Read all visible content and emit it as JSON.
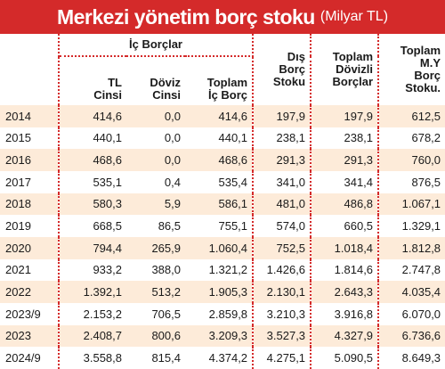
{
  "title": "Merkezi yönetim borç stoku",
  "unit": "(Milyar TL)",
  "chart_data": {
    "type": "table",
    "group_header": "İç Borçlar",
    "columns": [
      "",
      "TL Cinsi",
      "Döviz Cinsi",
      "Toplam İç Borç",
      "Dış Borç Stoku",
      "Toplam Dövizli Borçlar",
      "Toplam M.Y Borç Stoku."
    ],
    "header_lines": [
      [],
      [
        "TL",
        "Cinsi"
      ],
      [
        "Döviz",
        "Cinsi"
      ],
      [
        "Toplam",
        "İç Borç"
      ],
      [
        "Dış",
        "Borç",
        "Stoku"
      ],
      [
        "Toplam",
        "Dövizli",
        "Borçlar"
      ],
      [
        "Toplam",
        "M.Y",
        "Borç",
        "Stoku."
      ]
    ],
    "rows": [
      [
        "2014",
        "414,6",
        "0,0",
        "414,6",
        "197,9",
        "197,9",
        "612,5"
      ],
      [
        "2015",
        "440,1",
        "0,0",
        "440,1",
        "238,1",
        "238,1",
        "678,2"
      ],
      [
        "2016",
        "468,6",
        "0,0",
        "468,6",
        "291,3",
        "291,3",
        "760,0"
      ],
      [
        "2017",
        "535,1",
        "0,4",
        "535,4",
        "341,0",
        "341,4",
        "876,5"
      ],
      [
        "2018",
        "580,3",
        "5,9",
        "586,1",
        "481,0",
        "486,8",
        "1.067,1"
      ],
      [
        "2019",
        "668,5",
        "86,5",
        "755,1",
        "574,0",
        "660,5",
        "1.329,1"
      ],
      [
        "2020",
        "794,4",
        "265,9",
        "1.060,4",
        "752,5",
        "1.018,4",
        "1.812,8"
      ],
      [
        "2021",
        "933,2",
        "388,0",
        "1.321,2",
        "1.426,6",
        "1.814,6",
        "2.747,8"
      ],
      [
        "2022",
        "1.392,1",
        "513,2",
        "1.905,3",
        "2.130,1",
        "2.643,3",
        "4.035,4"
      ],
      [
        "2023/9",
        "2.153,2",
        "706,5",
        "2.859,8",
        "3.210,3",
        "3.916,8",
        "6.070,0"
      ],
      [
        "2023",
        "2.408,7",
        "800,6",
        "3.209,3",
        "3.527,3",
        "4.327,9",
        "6.736,6"
      ],
      [
        "2024/9",
        "3.558,8",
        "815,4",
        "4.374,2",
        "4.275,1",
        "5.090,5",
        "8.649,3"
      ]
    ]
  },
  "colors": {
    "title_bg": "#d42a2a",
    "stripe": "#fdebd9",
    "divider": "#d42a2a"
  }
}
